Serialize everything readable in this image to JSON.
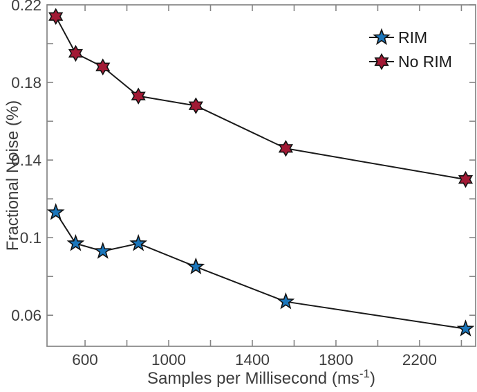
{
  "chart_data": {
    "type": "line",
    "title": "",
    "xlabel": "Samples per Millisecond (ms^-1)",
    "xlabel_parts": {
      "pre": "Samples per Millisecond (ms",
      "sup": "-1",
      "post": ")"
    },
    "ylabel": "Fractional Noise (%)",
    "x": [
      460,
      555,
      685,
      855,
      1130,
      1560,
      2420
    ],
    "series": [
      {
        "name": "RIM",
        "marker": "star5",
        "marker_color": "#1b76bb",
        "values": [
          0.113,
          0.097,
          0.093,
          0.097,
          0.085,
          0.067,
          0.053
        ]
      },
      {
        "name": "No RIM",
        "marker": "star6",
        "marker_color": "#a21a35",
        "values": [
          0.214,
          0.195,
          0.188,
          0.173,
          0.168,
          0.146,
          0.13
        ]
      }
    ],
    "xlim": [
      418,
      2468
    ],
    "ylim": [
      0.044,
      0.22
    ],
    "x_ticks": [
      {
        "v": 600,
        "label": "600"
      },
      {
        "v": 800,
        "label": ""
      },
      {
        "v": 1000,
        "label": "1000"
      },
      {
        "v": 1200,
        "label": ""
      },
      {
        "v": 1400,
        "label": "1400"
      },
      {
        "v": 1600,
        "label": ""
      },
      {
        "v": 1800,
        "label": "1800"
      },
      {
        "v": 2000,
        "label": ""
      },
      {
        "v": 2200,
        "label": "2200"
      },
      {
        "v": 2400,
        "label": ""
      }
    ],
    "y_ticks": [
      {
        "v": 0.06,
        "label": "0.06"
      },
      {
        "v": 0.08,
        "label": ""
      },
      {
        "v": 0.1,
        "label": "0.1"
      },
      {
        "v": 0.12,
        "label": ""
      },
      {
        "v": 0.14,
        "label": "0.14"
      },
      {
        "v": 0.16,
        "label": ""
      },
      {
        "v": 0.18,
        "label": "0.18"
      },
      {
        "v": 0.2,
        "label": ""
      },
      {
        "v": 0.22,
        "label": "0.22"
      }
    ],
    "legend": {
      "position": "top-right",
      "border": false,
      "entries": [
        "RIM",
        "No RIM"
      ]
    },
    "grid": false,
    "colors": {
      "line": "#1a1a1a",
      "marker_edge": "#111111",
      "axis_box": "#858585",
      "text": "#3d3d3d",
      "background": "#ffffff"
    }
  }
}
